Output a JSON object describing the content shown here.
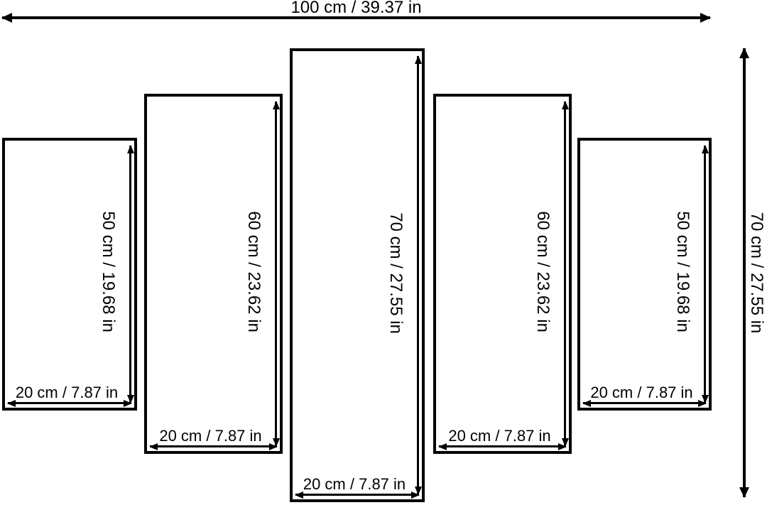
{
  "diagram": {
    "type": "multi-panel-canvas-size-diagram",
    "panel_count": 5,
    "colors": {
      "line": "#000000",
      "background": "#ffffff"
    },
    "overall_width_label": "100 cm / 39.37 in",
    "overall_height_label": "70 cm / 27.55 in",
    "panels": [
      {
        "id": "panel-1",
        "height_label": "50 cm / 19.68 in",
        "width_label": "20 cm / 7.87 in"
      },
      {
        "id": "panel-2",
        "height_label": "60 cm / 23.62 in",
        "width_label": "20 cm / 7.87 in"
      },
      {
        "id": "panel-3",
        "height_label": "70 cm / 27.55 in",
        "width_label": "20 cm / 7.87 in"
      },
      {
        "id": "panel-4",
        "height_label": "60 cm / 23.62 in",
        "width_label": "20 cm / 7.87 in"
      },
      {
        "id": "panel-5",
        "height_label": "50 cm / 19.68 in",
        "width_label": "20 cm / 7.87 in"
      }
    ]
  }
}
